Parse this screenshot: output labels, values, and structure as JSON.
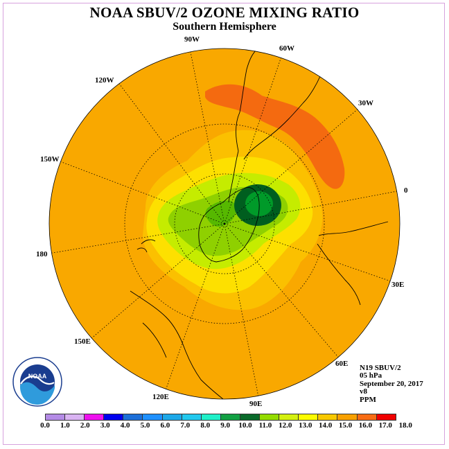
{
  "title": "NOAA SBUV/2 OZONE MIXING RATIO",
  "subtitle": "Southern Hemisphere",
  "map": {
    "projection": "south polar stereographic",
    "longitude_labels": [
      "90W",
      "60W",
      "30W",
      "0",
      "30E",
      "60E",
      "90E",
      "120E",
      "150E",
      "180",
      "150W",
      "120W"
    ],
    "field_colors": {
      "background_level": "#f9a800",
      "high_band": "#f46a10",
      "yellow_band": "#fde000",
      "lime": "#c5ec00",
      "light_green": "#8fd000",
      "green": "#009a29",
      "dark_green": "#005e1f"
    }
  },
  "info": {
    "instrument": "N19 SBUV/2",
    "level": "05 hPa",
    "date": "September 20, 2017",
    "version": "v8",
    "units": "PPM"
  },
  "colorbar": {
    "labels": [
      "0.0",
      "1.0",
      "2.0",
      "3.0",
      "4.0",
      "5.0",
      "6.0",
      "7.0",
      "8.0",
      "9.0",
      "10.0",
      "11.0",
      "12.0",
      "13.0",
      "14.0",
      "15.0",
      "16.0",
      "17.0",
      "18.0"
    ],
    "colors": [
      "#b48be6",
      "#d9b3f2",
      "#ee11ee",
      "#0000ee",
      "#1c6fd8",
      "#1e90ff",
      "#1ca8e8",
      "#22c8ee",
      "#20f0c8",
      "#12a043",
      "#0a6a2a",
      "#94dc00",
      "#d4f010",
      "#fcfc00",
      "#f8c800",
      "#f8a000",
      "#f86c14",
      "#f00000",
      "#8a5a3a"
    ]
  },
  "logo": {
    "name": "NOAA",
    "ring_text": "NATIONAL OCEANIC AND ATMOSPHERIC ADMINISTRATION",
    "ring_text_bottom": "U.S. DEPARTMENT OF COMMERCE"
  }
}
